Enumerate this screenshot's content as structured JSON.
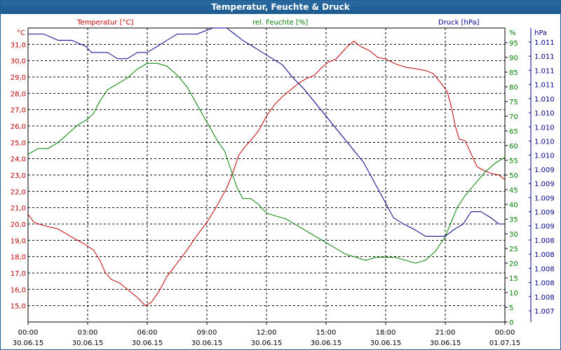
{
  "window": {
    "title": "Temperatur, Feuchte & Druck"
  },
  "chart_data": {
    "type": "line",
    "title": "Temperatur, Feuchte & Druck",
    "grid": true,
    "x": {
      "range": [
        "30.06.15 00:00",
        "01.07.15 00:00"
      ],
      "ticks": [
        {
          "time": "00:00",
          "date": "30.06.15"
        },
        {
          "time": "03:00",
          "date": "30.06.15"
        },
        {
          "time": "06:00",
          "date": "30.06.15"
        },
        {
          "time": "09:00",
          "date": "30.06.15"
        },
        {
          "time": "12:00",
          "date": "30.06.15"
        },
        {
          "time": "15:00",
          "date": "30.06.15"
        },
        {
          "time": "18:00",
          "date": "30.06.15"
        },
        {
          "time": "21:00",
          "date": "30.06.15"
        },
        {
          "time": "00:00",
          "date": "01.07.15"
        }
      ]
    },
    "axes": {
      "temperature": {
        "unit": "°C",
        "range": [
          14.0,
          32.0
        ],
        "color": "#c00000",
        "ticks": [
          "15,0",
          "16,0",
          "17,0",
          "18,0",
          "19,0",
          "20,0",
          "21,0",
          "22,0",
          "23,0",
          "24,0",
          "25,0",
          "26,0",
          "27,0",
          "28,0",
          "29,0",
          "30,0",
          "31,0"
        ]
      },
      "humidity": {
        "unit": "%",
        "range": [
          0,
          100
        ],
        "color": "#008000",
        "ticks": [
          "0",
          "5",
          "10",
          "15",
          "20",
          "25",
          "30",
          "35",
          "40",
          "45",
          "50",
          "55",
          "60",
          "65",
          "70",
          "75",
          "80",
          "85",
          "90",
          "95"
        ]
      },
      "pressure": {
        "unit": "hPa",
        "range": [
          1.0066,
          1.0114
        ],
        "color": "#00008b",
        "ticks": [
          "1.007",
          "1.008",
          "1.008",
          "1.008",
          "1.008",
          "1.008",
          "1.009",
          "1.009",
          "1.009",
          "1.009",
          "1.009",
          "1.010",
          "1.010",
          "1.010",
          "1.010",
          "1.010",
          "1.011",
          "1.011",
          "1.011",
          "1.011"
        ]
      }
    },
    "series": [
      {
        "name": "Temperatur [°C]",
        "axis": "temperature",
        "color": "#c00000",
        "points": [
          [
            0,
            20.6
          ],
          [
            0.3,
            20.1
          ],
          [
            0.8,
            19.9
          ],
          [
            1.5,
            19.7
          ],
          [
            2.2,
            19.2
          ],
          [
            2.8,
            18.8
          ],
          [
            3.3,
            18.4
          ],
          [
            3.6,
            17.8
          ],
          [
            3.9,
            17.0
          ],
          [
            4.2,
            16.6
          ],
          [
            4.6,
            16.4
          ],
          [
            5.0,
            16.0
          ],
          [
            5.5,
            15.5
          ],
          [
            5.9,
            15.0
          ],
          [
            6.2,
            15.2
          ],
          [
            6.6,
            15.9
          ],
          [
            7.0,
            16.8
          ],
          [
            7.5,
            17.6
          ],
          [
            8.0,
            18.4
          ],
          [
            8.5,
            19.3
          ],
          [
            9.0,
            20.1
          ],
          [
            9.5,
            21.1
          ],
          [
            10.0,
            22.2
          ],
          [
            10.3,
            23.1
          ],
          [
            10.6,
            24.2
          ],
          [
            10.9,
            24.7
          ],
          [
            11.2,
            25.1
          ],
          [
            11.6,
            25.7
          ],
          [
            12.0,
            26.6
          ],
          [
            12.4,
            27.3
          ],
          [
            12.8,
            27.8
          ],
          [
            13.2,
            28.2
          ],
          [
            13.6,
            28.6
          ],
          [
            14.0,
            28.9
          ],
          [
            14.4,
            29.1
          ],
          [
            14.8,
            29.6
          ],
          [
            15.1,
            29.9
          ],
          [
            15.5,
            30.1
          ],
          [
            15.8,
            30.5
          ],
          [
            16.1,
            30.9
          ],
          [
            16.4,
            31.2
          ],
          [
            16.7,
            30.9
          ],
          [
            17.2,
            30.6
          ],
          [
            17.6,
            30.2
          ],
          [
            18.0,
            30.1
          ],
          [
            18.5,
            29.8
          ],
          [
            19.0,
            29.6
          ],
          [
            19.5,
            29.5
          ],
          [
            20.0,
            29.4
          ],
          [
            20.4,
            29.2
          ],
          [
            20.8,
            28.6
          ],
          [
            21.1,
            28.1
          ],
          [
            21.3,
            27.2
          ],
          [
            21.5,
            26.0
          ],
          [
            21.7,
            25.2
          ],
          [
            22.0,
            25.1
          ],
          [
            22.3,
            24.3
          ],
          [
            22.6,
            23.5
          ],
          [
            22.9,
            23.3
          ],
          [
            23.3,
            23.1
          ],
          [
            23.7,
            23.0
          ],
          [
            24.0,
            22.7
          ]
        ]
      },
      {
        "name": "rel. Feuchte [%]",
        "axis": "humidity",
        "color": "#008000",
        "points": [
          [
            0,
            57
          ],
          [
            0.5,
            59
          ],
          [
            1.0,
            59
          ],
          [
            1.5,
            61
          ],
          [
            2.0,
            64
          ],
          [
            2.5,
            67
          ],
          [
            3.0,
            69
          ],
          [
            3.3,
            71
          ],
          [
            3.6,
            75
          ],
          [
            4.0,
            79
          ],
          [
            4.5,
            81
          ],
          [
            5.0,
            83
          ],
          [
            5.5,
            86
          ],
          [
            6.0,
            88
          ],
          [
            6.5,
            88
          ],
          [
            7.0,
            87
          ],
          [
            7.5,
            84
          ],
          [
            8.0,
            80
          ],
          [
            8.5,
            74
          ],
          [
            9.0,
            68
          ],
          [
            9.5,
            62
          ],
          [
            9.9,
            58
          ],
          [
            10.2,
            52
          ],
          [
            10.5,
            46
          ],
          [
            10.8,
            42
          ],
          [
            11.2,
            42
          ],
          [
            11.6,
            40
          ],
          [
            12.0,
            37
          ],
          [
            12.5,
            36
          ],
          [
            13.0,
            35
          ],
          [
            13.5,
            33
          ],
          [
            14.0,
            31
          ],
          [
            14.5,
            29
          ],
          [
            15.0,
            27
          ],
          [
            15.5,
            25
          ],
          [
            16.0,
            23
          ],
          [
            16.5,
            22
          ],
          [
            17.0,
            21
          ],
          [
            17.5,
            22
          ],
          [
            18.0,
            22
          ],
          [
            18.5,
            22
          ],
          [
            19.0,
            21
          ],
          [
            19.5,
            20
          ],
          [
            20.0,
            21
          ],
          [
            20.5,
            24
          ],
          [
            21.0,
            29
          ],
          [
            21.3,
            34
          ],
          [
            21.6,
            39
          ],
          [
            22.0,
            43
          ],
          [
            22.5,
            47
          ],
          [
            23.0,
            51
          ],
          [
            23.5,
            54
          ],
          [
            24.0,
            56
          ]
        ]
      },
      {
        "name": "Druck [hPa]",
        "axis": "pressure",
        "color": "#00008b",
        "points": [
          [
            0,
            1.0113
          ],
          [
            0.8,
            1.0113
          ],
          [
            1.5,
            1.0112
          ],
          [
            2.2,
            1.0112
          ],
          [
            2.9,
            1.0111
          ],
          [
            3.2,
            1.011
          ],
          [
            3.6,
            1.011
          ],
          [
            4.0,
            1.011
          ],
          [
            4.5,
            1.0109
          ],
          [
            5.0,
            1.0109
          ],
          [
            5.5,
            1.011
          ],
          [
            6.0,
            1.011
          ],
          [
            6.5,
            1.0111
          ],
          [
            7.0,
            1.0112
          ],
          [
            7.5,
            1.0113
          ],
          [
            8.5,
            1.0113
          ],
          [
            9.3,
            1.0114
          ],
          [
            10.0,
            1.0114
          ],
          [
            10.4,
            1.0113
          ],
          [
            10.8,
            1.0112
          ],
          [
            11.3,
            1.0111
          ],
          [
            11.8,
            1.011
          ],
          [
            12.3,
            1.0109
          ],
          [
            12.8,
            1.0108
          ],
          [
            13.3,
            1.0106
          ],
          [
            13.9,
            1.0104
          ],
          [
            14.4,
            1.0102
          ],
          [
            14.9,
            1.01
          ],
          [
            15.4,
            1.0098
          ],
          [
            15.9,
            1.0096
          ],
          [
            16.4,
            1.0094
          ],
          [
            16.9,
            1.0092
          ],
          [
            17.4,
            1.0089
          ],
          [
            17.9,
            1.0086
          ],
          [
            18.4,
            1.0083
          ],
          [
            18.9,
            1.0082
          ],
          [
            19.5,
            1.0081
          ],
          [
            20.0,
            1.008
          ],
          [
            20.6,
            1.008
          ],
          [
            21.0,
            1.008
          ],
          [
            21.4,
            1.0081
          ],
          [
            21.9,
            1.0082
          ],
          [
            22.3,
            1.0084
          ],
          [
            22.8,
            1.0084
          ],
          [
            23.3,
            1.0083
          ],
          [
            23.7,
            1.0082
          ],
          [
            24.0,
            1.0082
          ]
        ]
      }
    ]
  }
}
